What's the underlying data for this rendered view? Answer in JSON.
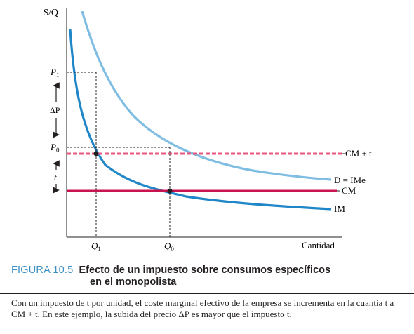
{
  "figure": {
    "y_axis_label": "$/Q",
    "x_axis_label": "Cantidad",
    "tick_labels": {
      "p1": "P",
      "p1_sub": "1",
      "p0": "P",
      "p0_sub": "0",
      "delta_p": "ΔP",
      "t": "t",
      "q1": "Q",
      "q1_sub": "1",
      "q0": "Q",
      "q0_sub": "0"
    },
    "curve_labels": {
      "cm_plus_t": "CM + t",
      "demand": "D = IMe",
      "cm": "CM",
      "im": "IM"
    },
    "colors": {
      "demand": "#7fbde3",
      "im": "#1f86c8",
      "cm": "#c8134f",
      "cm_plus_t": "#e8577f",
      "axis": "#231f20"
    }
  },
  "caption": {
    "number": "FIGURA 10.5",
    "title_line1": "Efecto de un impuesto sobre consumos específicos",
    "title_line2": "en el monopolista",
    "body": "Con un impuesto de t por unidad, el coste marginal efectivo de la empresa se incrementa en la cuantía t a CM + t. En este ejemplo, la subida del precio ΔP es mayor que el impuesto t."
  }
}
